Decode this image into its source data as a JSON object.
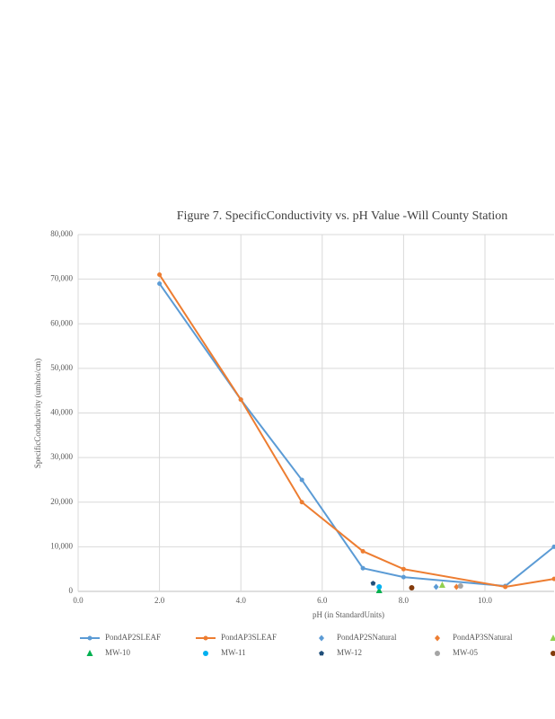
{
  "chart_data": {
    "type": "scatter",
    "title": "Figure 7. SpecificConductivity vs. pH Value  -Will  County Station",
    "x_label": "pH (in StandardUnits)",
    "y_label": "SpecificConductivity (umhos/cm)",
    "xlim": [
      0,
      11.7
    ],
    "ylim": [
      0,
      80000
    ],
    "xticks": [
      {
        "value": 0,
        "label": "0.0"
      },
      {
        "value": 2,
        "label": "2.0"
      },
      {
        "value": 4,
        "label": "4.0"
      },
      {
        "value": 6,
        "label": "6.0"
      },
      {
        "value": 8,
        "label": "8.0"
      },
      {
        "value": 10,
        "label": "10.0"
      }
    ],
    "yticks": [
      0,
      {
        "value": 10000,
        "label": "10,000"
      },
      {
        "value": 20000,
        "label": "20,000"
      },
      {
        "value": 30000,
        "label": "30,000"
      },
      {
        "value": 40000,
        "label": "40,000"
      },
      {
        "value": 50000,
        "label": "50,000"
      },
      {
        "value": 60000,
        "label": "60,000"
      },
      {
        "value": 70000,
        "label": "70,000"
      },
      {
        "value": 80000,
        "label": "80,000"
      }
    ],
    "grid": true,
    "series": [
      {
        "name": "PondAP2SLEAF",
        "color": "#5b9bd5",
        "line": true,
        "marker": "circle",
        "x": [
          2,
          4,
          5.5,
          7,
          8,
          10.5,
          11.7
        ],
        "values": [
          69000,
          43000,
          25000,
          5200,
          3200,
          1200,
          10000
        ]
      },
      {
        "name": "PondAP3SLEAF",
        "color": "#ed7d31",
        "line": true,
        "marker": "circle",
        "x": [
          2,
          4,
          5.5,
          7,
          8,
          10.5,
          11.7
        ],
        "values": [
          71000,
          43000,
          20000,
          9000,
          5000,
          1000,
          2800
        ]
      },
      {
        "name": "PondAP2SNatural",
        "color": "#5b9bd5",
        "line": false,
        "marker": "diamond",
        "x": [
          8.8
        ],
        "values": [
          1000
        ]
      },
      {
        "name": "PondAP3SNatural",
        "color": "#ed7d31",
        "line": false,
        "marker": "diamond",
        "x": [
          9.3
        ],
        "values": [
          1000
        ]
      },
      {
        "name": null,
        "color": "#92d050",
        "line": false,
        "marker": "triangle",
        "x": [
          8.95
        ],
        "values": [
          1400
        ]
      },
      {
        "name": "MW-10",
        "color": "#00b050",
        "line": false,
        "marker": "triangle",
        "x": [
          7.4
        ],
        "values": [
          200
        ]
      },
      {
        "name": "MW-11",
        "color": "#00b0f0",
        "line": false,
        "marker": "circle",
        "x": [
          7.4
        ],
        "values": [
          1000
        ]
      },
      {
        "name": "MW-12",
        "color": "#1f4e79",
        "line": false,
        "marker": "pentagon",
        "x": [
          7.25
        ],
        "values": [
          1800
        ]
      },
      {
        "name": "MW-05",
        "color": "#a5a5a5",
        "line": false,
        "marker": "circle",
        "x": [
          9.4
        ],
        "values": [
          1200
        ]
      },
      {
        "name": null,
        "color": "#843c0c",
        "line": false,
        "marker": "circle",
        "x": [
          8.2
        ],
        "values": [
          800
        ]
      }
    ]
  }
}
